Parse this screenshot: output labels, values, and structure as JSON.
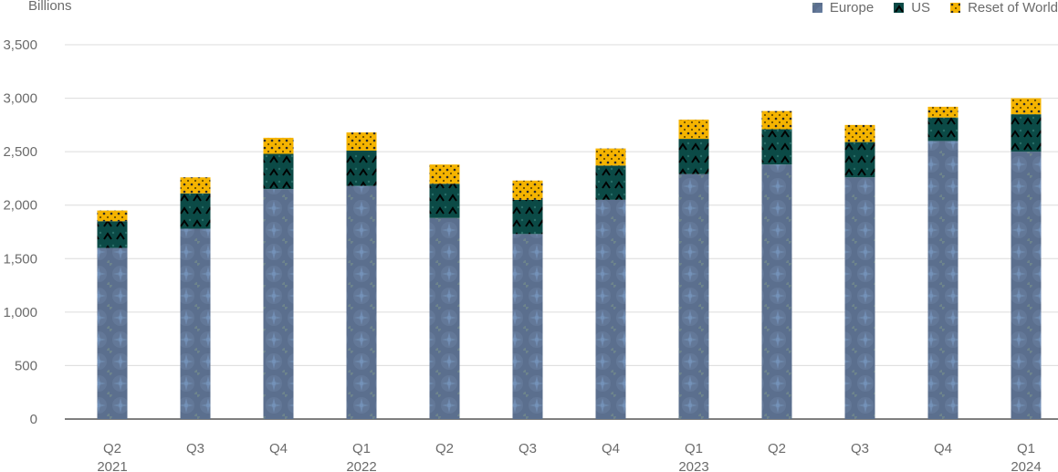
{
  "chart_data": {
    "type": "bar",
    "stacked": true,
    "ylabel": "Billions",
    "ylim": [
      0,
      3500
    ],
    "yticks": [
      "0",
      "500",
      "1,000",
      "1,500",
      "2,000",
      "2,500",
      "3,000",
      "3,500"
    ],
    "ytick_values": [
      0,
      500,
      1000,
      1500,
      2000,
      2500,
      3000,
      3500
    ],
    "grid": true,
    "legend_position": "top-right",
    "categories": [
      {
        "quarter": "Q2",
        "year": "2021"
      },
      {
        "quarter": "Q3",
        "year": ""
      },
      {
        "quarter": "Q4",
        "year": ""
      },
      {
        "quarter": "Q1",
        "year": "2022"
      },
      {
        "quarter": "Q2",
        "year": ""
      },
      {
        "quarter": "Q3",
        "year": ""
      },
      {
        "quarter": "Q4",
        "year": ""
      },
      {
        "quarter": "Q1",
        "year": "2023"
      },
      {
        "quarter": "Q2",
        "year": ""
      },
      {
        "quarter": "Q3",
        "year": ""
      },
      {
        "quarter": "Q4",
        "year": ""
      },
      {
        "quarter": "Q1",
        "year": "2024"
      }
    ],
    "series": [
      {
        "name": "Europe",
        "color": "#5b6f8e",
        "values": [
          1600,
          1780,
          2150,
          2180,
          1880,
          1730,
          2050,
          2290,
          2380,
          2260,
          2600,
          2500
        ]
      },
      {
        "name": "US",
        "color": "#0b4a46",
        "values": [
          250,
          330,
          330,
          330,
          320,
          320,
          320,
          330,
          330,
          330,
          220,
          350
        ]
      },
      {
        "name": "Reset of World",
        "color": "#f5b400",
        "values": [
          100,
          150,
          150,
          170,
          180,
          180,
          160,
          180,
          170,
          160,
          100,
          150
        ]
      }
    ]
  }
}
